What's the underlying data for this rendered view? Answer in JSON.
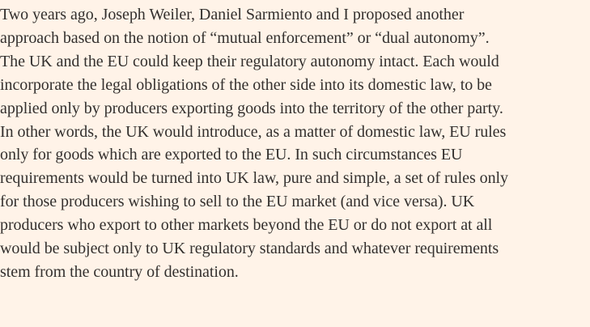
{
  "article": {
    "paragraph_lines": [
      "Two years ago, Joseph Weiler, Daniel Sarmiento and I proposed another",
      "approach based on the notion of “mutual enforcement” or “dual autonomy”.",
      "The UK and the EU could keep their regulatory autonomy intact. Each would",
      "incorporate the legal obligations of the other side into its domestic law, to be",
      "applied only by producers exporting goods into the territory of the other party.",
      "In other words, the UK would introduce, as a matter of domestic law, EU rules",
      "only for goods which are exported to the EU. In such circumstances EU",
      "requirements would be turned into UK law, pure and simple, a set of rules only",
      "for those producers wishing to sell to the EU market (and vice versa). UK",
      "producers who export to other markets beyond the EU or do not export at all",
      "would be subject only to UK regulatory standards and whatever requirements",
      "stem from the country of destination."
    ]
  }
}
